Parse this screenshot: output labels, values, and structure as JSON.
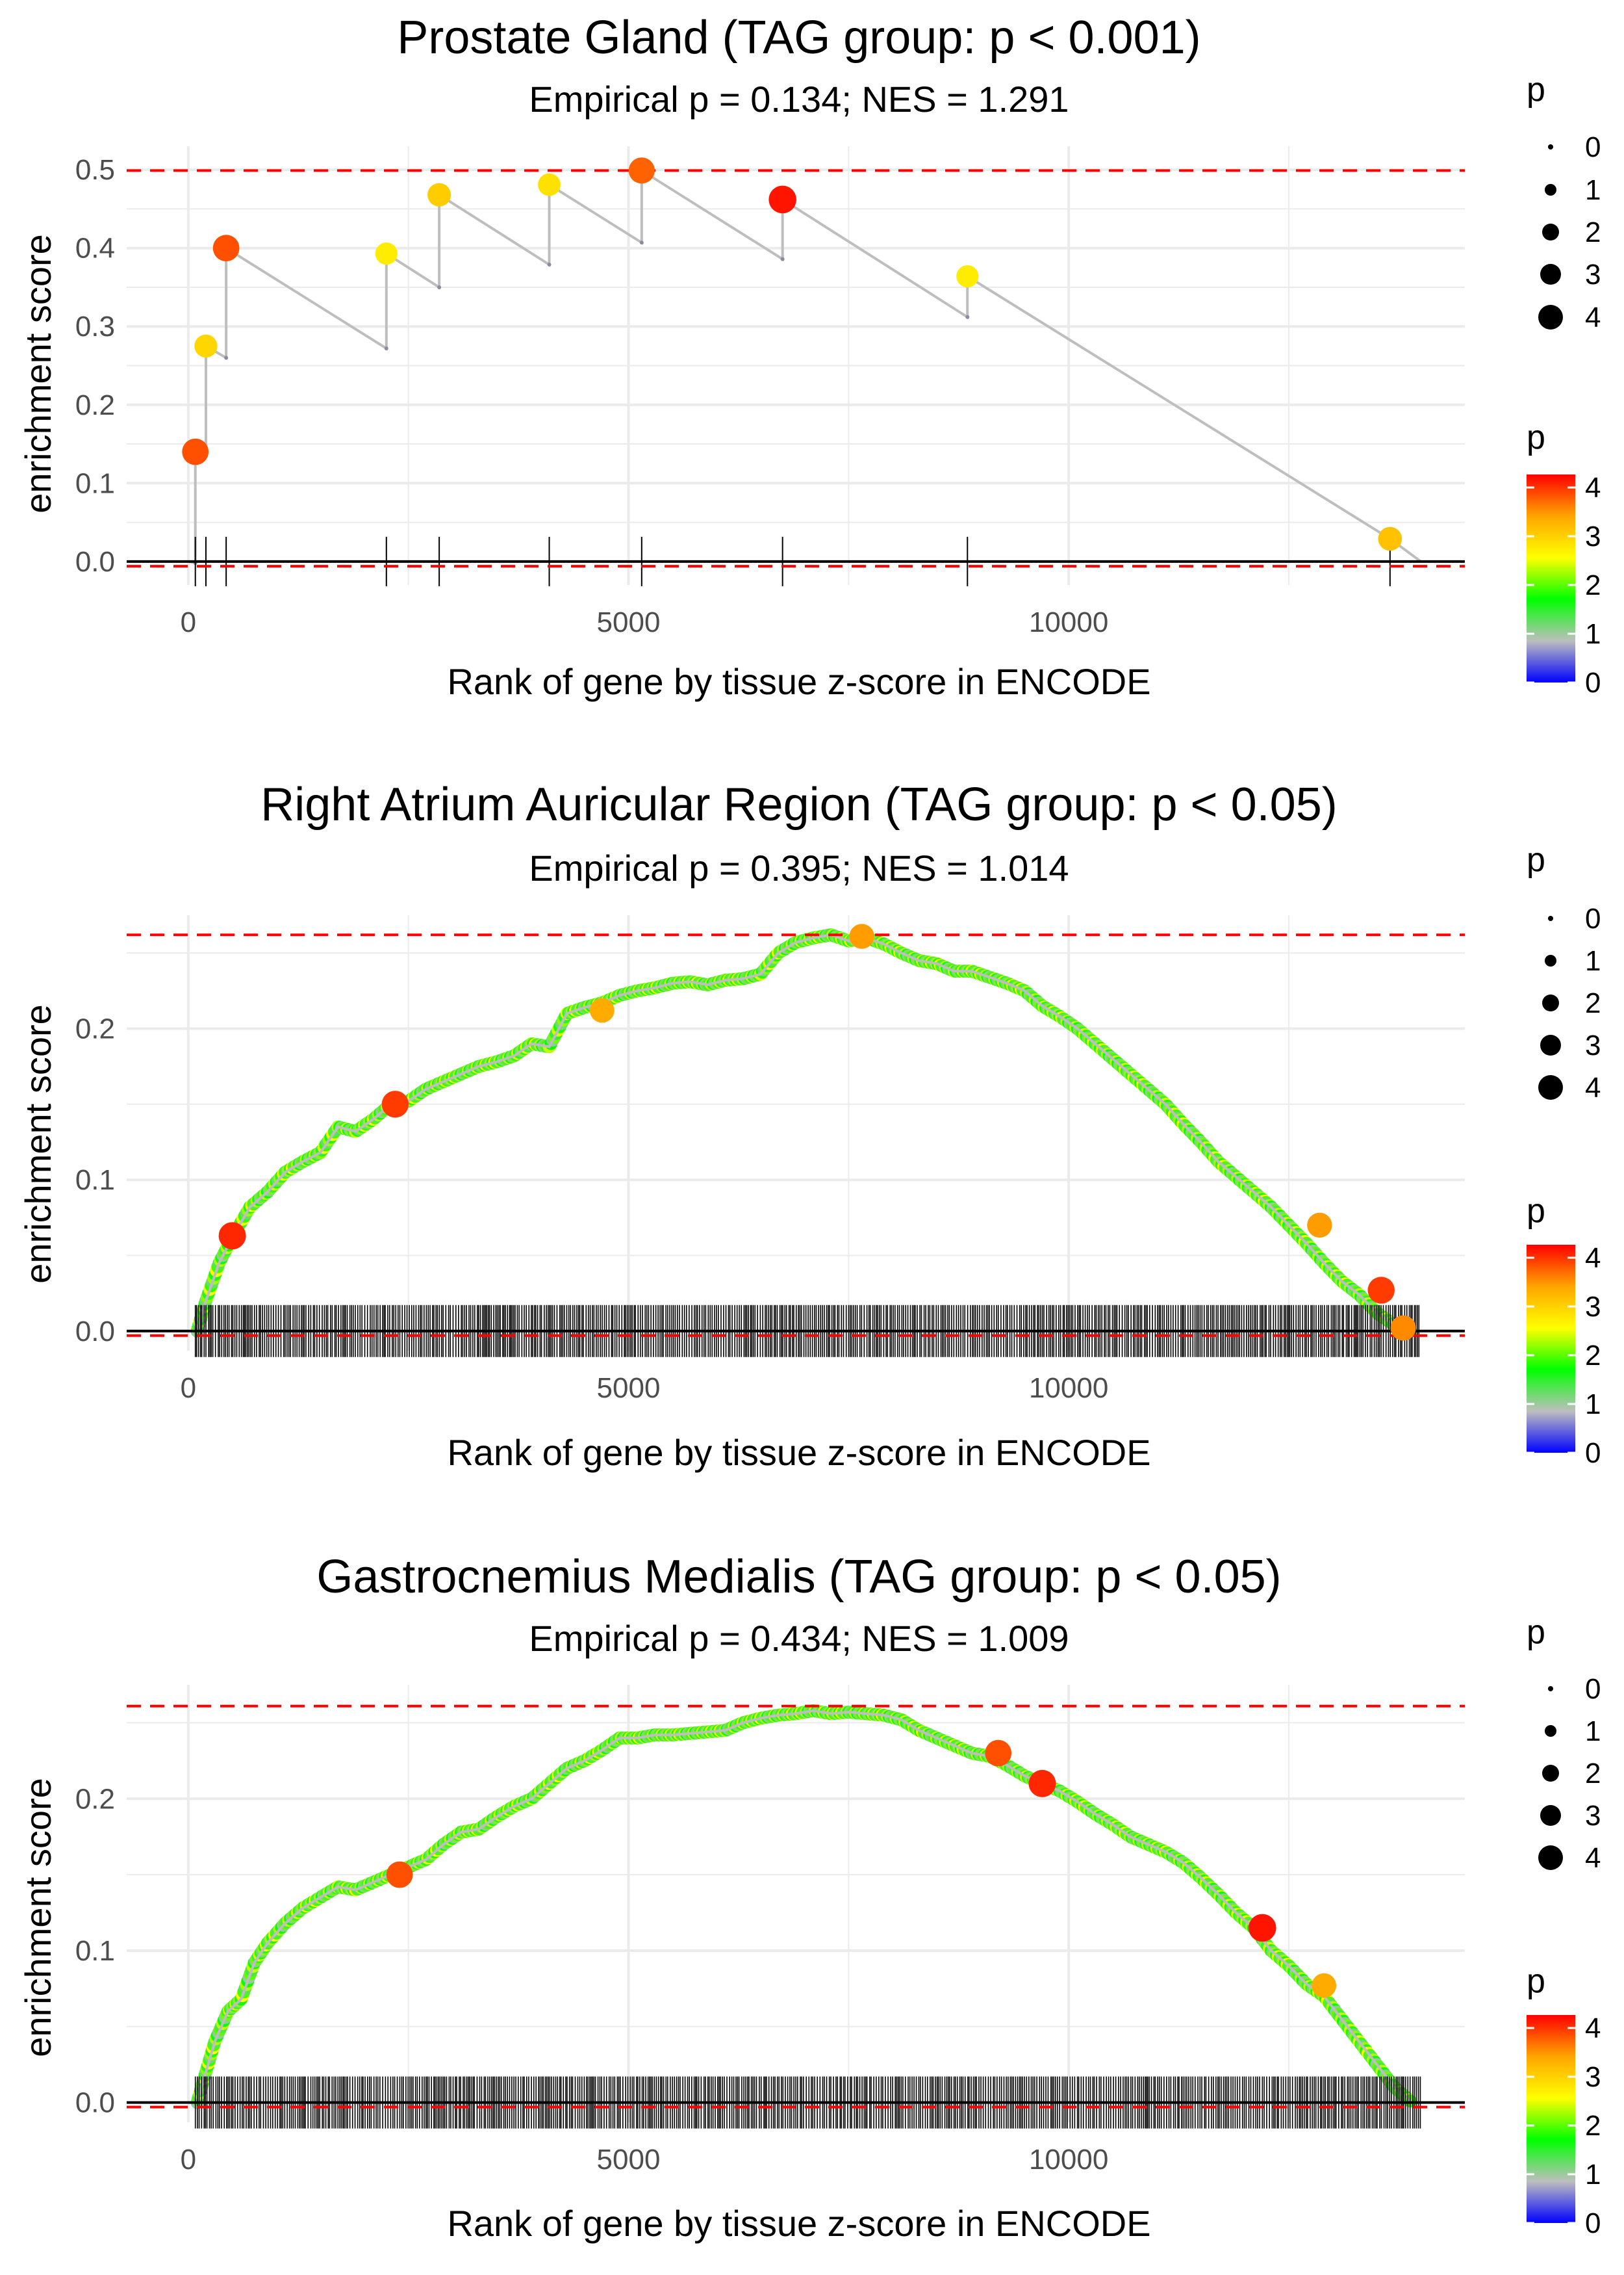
{
  "colors": {
    "grid": "#ebebeb",
    "threshold_line": "#ff0000",
    "zero_line": "#000000",
    "path_line": "#bebebe",
    "rug": "#000000",
    "gradient": [
      "#0000ff",
      "#bebebe",
      "#00ff00",
      "#ffff00",
      "#ffa500",
      "#ff0000"
    ]
  },
  "chart_data": [
    {
      "type": "scatter",
      "title": "Prostate Gland (TAG group: p < 0.001)",
      "subtitle": "Empirical p = 0.134; NES = 1.291",
      "xlabel": "Rank of gene by tissue z-score in ENCODE",
      "ylabel": "enrichment score",
      "xlim": [
        -700,
        14500
      ],
      "ylim": [
        -0.03,
        0.53
      ],
      "x_ticks": [
        0,
        5000,
        10000
      ],
      "x_tick_labels": [
        "0",
        "5000",
        "10000"
      ],
      "y_ticks": [
        0,
        0.1,
        0.2,
        0.3,
        0.4,
        0.5
      ],
      "y_tick_labels": [
        "0.0",
        "0.1",
        "0.2",
        "0.3",
        "0.4",
        "0.5"
      ],
      "threshold_upper": 0.499,
      "threshold_lower": -0.006,
      "rug_positions": [
        80,
        200,
        430,
        2250,
        2850,
        4100,
        5150,
        6750,
        8850,
        13650
      ],
      "path": [
        [
          0,
          0
        ],
        [
          80,
          -0.002
        ],
        [
          80,
          0.14
        ],
        [
          200,
          0.135
        ],
        [
          200,
          0.275
        ],
        [
          430,
          0.26
        ],
        [
          430,
          0.4
        ],
        [
          2250,
          0.272
        ],
        [
          2250,
          0.393
        ],
        [
          2850,
          0.35
        ],
        [
          2850,
          0.468
        ],
        [
          4100,
          0.379
        ],
        [
          4100,
          0.481
        ],
        [
          5150,
          0.407
        ],
        [
          5150,
          0.499
        ],
        [
          6750,
          0.386
        ],
        [
          6750,
          0.462
        ],
        [
          8850,
          0.312
        ],
        [
          8850,
          0.364
        ],
        [
          13650,
          0.029
        ],
        [
          14000,
          0.0
        ]
      ],
      "points": [
        {
          "x": 80,
          "y": 0.14,
          "p": 3.8
        },
        {
          "x": 200,
          "y": 0.275,
          "p": 2.9
        },
        {
          "x": 430,
          "y": 0.4,
          "p": 3.8
        },
        {
          "x": 2250,
          "y": 0.393,
          "p": 2.7
        },
        {
          "x": 2850,
          "y": 0.468,
          "p": 3.0
        },
        {
          "x": 4100,
          "y": 0.481,
          "p": 2.8
        },
        {
          "x": 5150,
          "y": 0.499,
          "p": 3.7
        },
        {
          "x": 6750,
          "y": 0.462,
          "p": 4.1
        },
        {
          "x": 8850,
          "y": 0.364,
          "p": 2.7
        },
        {
          "x": 13650,
          "y": 0.029,
          "p": 3.1
        }
      ],
      "legend_size_title": "p",
      "legend_size_labels": [
        "0",
        "1",
        "2",
        "3",
        "4"
      ],
      "legend_color_title": "p",
      "legend_color_labels": [
        "0",
        "1",
        "2",
        "3",
        "4"
      ]
    },
    {
      "type": "scatter",
      "title": "Right Atrium Auricular Region (TAG group: p < 0.05)",
      "subtitle": "Empirical p = 0.395; NES = 1.014",
      "xlabel": "Rank of gene by tissue z-score in ENCODE",
      "ylabel": "enrichment score",
      "xlim": [
        -700,
        14500
      ],
      "ylim": [
        -0.013,
        0.275
      ],
      "x_ticks": [
        0,
        5000,
        10000
      ],
      "x_tick_labels": [
        "0",
        "5000",
        "10000"
      ],
      "y_ticks": [
        0,
        0.1,
        0.2
      ],
      "y_tick_labels": [
        "0.0",
        "0.1",
        "0.2"
      ],
      "threshold_upper": 0.262,
      "threshold_lower": -0.003,
      "rug_range": [
        80,
        14000
      ],
      "curve": [
        [
          100,
          0.0
        ],
        [
          200,
          0.02
        ],
        [
          350,
          0.045
        ],
        [
          500,
          0.062
        ],
        [
          700,
          0.082
        ],
        [
          900,
          0.092
        ],
        [
          1100,
          0.105
        ],
        [
          1300,
          0.112
        ],
        [
          1500,
          0.118
        ],
        [
          1700,
          0.135
        ],
        [
          1900,
          0.132
        ],
        [
          2100,
          0.14
        ],
        [
          2300,
          0.15
        ],
        [
          2500,
          0.152
        ],
        [
          2700,
          0.16
        ],
        [
          2900,
          0.165
        ],
        [
          3100,
          0.17
        ],
        [
          3300,
          0.175
        ],
        [
          3500,
          0.178
        ],
        [
          3700,
          0.182
        ],
        [
          3900,
          0.19
        ],
        [
          4100,
          0.188
        ],
        [
          4300,
          0.21
        ],
        [
          4500,
          0.214
        ],
        [
          4700,
          0.217
        ],
        [
          4900,
          0.222
        ],
        [
          5100,
          0.225
        ],
        [
          5300,
          0.227
        ],
        [
          5500,
          0.23
        ],
        [
          5700,
          0.231
        ],
        [
          5900,
          0.229
        ],
        [
          6100,
          0.232
        ],
        [
          6300,
          0.233
        ],
        [
          6500,
          0.236
        ],
        [
          6700,
          0.25
        ],
        [
          6900,
          0.257
        ],
        [
          7100,
          0.26
        ],
        [
          7300,
          0.262
        ],
        [
          7500,
          0.258
        ],
        [
          7700,
          0.26
        ],
        [
          7900,
          0.256
        ],
        [
          8100,
          0.25
        ],
        [
          8300,
          0.245
        ],
        [
          8500,
          0.243
        ],
        [
          8700,
          0.238
        ],
        [
          8900,
          0.238
        ],
        [
          9100,
          0.234
        ],
        [
          9300,
          0.23
        ],
        [
          9500,
          0.225
        ],
        [
          9700,
          0.215
        ],
        [
          9900,
          0.208
        ],
        [
          10100,
          0.2
        ],
        [
          10300,
          0.19
        ],
        [
          10500,
          0.18
        ],
        [
          10700,
          0.17
        ],
        [
          10900,
          0.16
        ],
        [
          11100,
          0.15
        ],
        [
          11300,
          0.137
        ],
        [
          11500,
          0.125
        ],
        [
          11700,
          0.112
        ],
        [
          11900,
          0.102
        ],
        [
          12100,
          0.092
        ],
        [
          12300,
          0.082
        ],
        [
          12500,
          0.07
        ],
        [
          12700,
          0.058
        ],
        [
          12900,
          0.045
        ],
        [
          13100,
          0.033
        ],
        [
          13300,
          0.024
        ],
        [
          13500,
          0.012
        ],
        [
          13700,
          0.004
        ],
        [
          13900,
          0.0
        ]
      ],
      "highlight_points": [
        {
          "x": 500,
          "y": 0.063,
          "p": 4.0
        },
        {
          "x": 2350,
          "y": 0.15,
          "p": 3.9
        },
        {
          "x": 4700,
          "y": 0.212,
          "p": 3.3
        },
        {
          "x": 7650,
          "y": 0.261,
          "p": 3.4
        },
        {
          "x": 12850,
          "y": 0.07,
          "p": 3.4
        },
        {
          "x": 13550,
          "y": 0.027,
          "p": 3.9
        },
        {
          "x": 13800,
          "y": 0.002,
          "p": 3.5
        }
      ],
      "legend_size_title": "p",
      "legend_size_labels": [
        "0",
        "1",
        "2",
        "3",
        "4"
      ],
      "legend_color_title": "p",
      "legend_color_labels": [
        "0",
        "1",
        "2",
        "3",
        "4"
      ]
    },
    {
      "type": "scatter",
      "title": "Gastrocnemius Medialis (TAG group: p < 0.05)",
      "subtitle": "Empirical p = 0.434; NES = 1.009",
      "xlabel": "Rank of gene by tissue z-score in ENCODE",
      "ylabel": "enrichment score",
      "xlim": [
        -700,
        14500
      ],
      "ylim": [
        -0.013,
        0.275
      ],
      "x_ticks": [
        0,
        5000,
        10000
      ],
      "x_tick_labels": [
        "0",
        "5000",
        "10000"
      ],
      "y_ticks": [
        0,
        0.1,
        0.2
      ],
      "y_tick_labels": [
        "0.0",
        "0.1",
        "0.2"
      ],
      "threshold_upper": 0.261,
      "threshold_lower": -0.003,
      "rug_range": [
        80,
        14000
      ],
      "curve": [
        [
          100,
          0.0
        ],
        [
          200,
          0.02
        ],
        [
          300,
          0.04
        ],
        [
          450,
          0.06
        ],
        [
          600,
          0.068
        ],
        [
          750,
          0.092
        ],
        [
          900,
          0.105
        ],
        [
          1100,
          0.118
        ],
        [
          1300,
          0.128
        ],
        [
          1500,
          0.135
        ],
        [
          1700,
          0.142
        ],
        [
          1900,
          0.14
        ],
        [
          2100,
          0.145
        ],
        [
          2300,
          0.15
        ],
        [
          2500,
          0.155
        ],
        [
          2700,
          0.16
        ],
        [
          2900,
          0.17
        ],
        [
          3100,
          0.178
        ],
        [
          3300,
          0.18
        ],
        [
          3500,
          0.188
        ],
        [
          3700,
          0.195
        ],
        [
          3900,
          0.2
        ],
        [
          4100,
          0.21
        ],
        [
          4300,
          0.22
        ],
        [
          4500,
          0.225
        ],
        [
          4700,
          0.232
        ],
        [
          4900,
          0.24
        ],
        [
          5100,
          0.24
        ],
        [
          5300,
          0.242
        ],
        [
          5500,
          0.242
        ],
        [
          5700,
          0.243
        ],
        [
          5900,
          0.244
        ],
        [
          6100,
          0.245
        ],
        [
          6300,
          0.25
        ],
        [
          6500,
          0.253
        ],
        [
          6700,
          0.255
        ],
        [
          6900,
          0.256
        ],
        [
          7100,
          0.258
        ],
        [
          7300,
          0.256
        ],
        [
          7500,
          0.257
        ],
        [
          7700,
          0.256
        ],
        [
          7900,
          0.255
        ],
        [
          8100,
          0.252
        ],
        [
          8300,
          0.245
        ],
        [
          8500,
          0.24
        ],
        [
          8700,
          0.235
        ],
        [
          8900,
          0.23
        ],
        [
          9100,
          0.228
        ],
        [
          9300,
          0.222
        ],
        [
          9500,
          0.215
        ],
        [
          9700,
          0.21
        ],
        [
          9900,
          0.205
        ],
        [
          10100,
          0.198
        ],
        [
          10300,
          0.19
        ],
        [
          10500,
          0.183
        ],
        [
          10700,
          0.175
        ],
        [
          10900,
          0.17
        ],
        [
          11100,
          0.165
        ],
        [
          11300,
          0.158
        ],
        [
          11500,
          0.148
        ],
        [
          11700,
          0.137
        ],
        [
          11900,
          0.125
        ],
        [
          12100,
          0.115
        ],
        [
          12300,
          0.1
        ],
        [
          12500,
          0.09
        ],
        [
          12700,
          0.078
        ],
        [
          12900,
          0.07
        ],
        [
          13100,
          0.055
        ],
        [
          13300,
          0.04
        ],
        [
          13500,
          0.025
        ],
        [
          13700,
          0.01
        ],
        [
          13900,
          0.0
        ]
      ],
      "highlight_points": [
        {
          "x": 2400,
          "y": 0.15,
          "p": 3.8
        },
        {
          "x": 9200,
          "y": 0.23,
          "p": 3.8
        },
        {
          "x": 9700,
          "y": 0.21,
          "p": 4.0
        },
        {
          "x": 12200,
          "y": 0.115,
          "p": 4.1
        },
        {
          "x": 12900,
          "y": 0.077,
          "p": 3.3
        }
      ],
      "legend_size_title": "p",
      "legend_size_labels": [
        "0",
        "1",
        "2",
        "3",
        "4"
      ],
      "legend_color_title": "p",
      "legend_color_labels": [
        "0",
        "1",
        "2",
        "3",
        "4"
      ]
    }
  ]
}
